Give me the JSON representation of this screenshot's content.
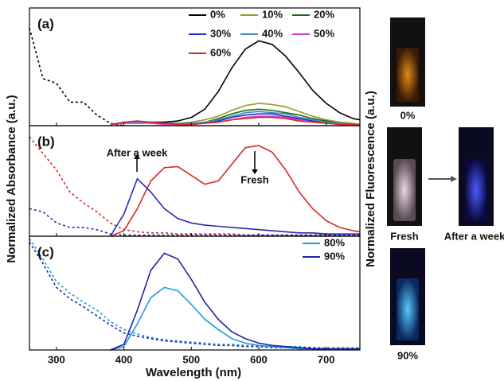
{
  "figure": {
    "xlabel": "Wavelength (nm)",
    "ylabel_left": "Normalized Absorbance (a.u.)",
    "ylabel_right": "Normalized Fluorescence (a.u.)"
  },
  "photos": {
    "labels": [
      "0%",
      "Fresh",
      "After a week",
      "90%"
    ]
  },
  "chart_data": [
    {
      "type": "line",
      "label": "(a)",
      "xlim": [
        260,
        750
      ],
      "ylim": [
        0,
        1
      ],
      "legend": "upper right",
      "x": [
        260,
        280,
        300,
        320,
        340,
        360,
        380,
        400,
        420,
        440,
        460,
        480,
        500,
        520,
        540,
        560,
        580,
        600,
        620,
        640,
        660,
        680,
        700,
        720,
        740,
        750
      ],
      "series": [
        {
          "color": "#000000",
          "dash": true,
          "values": [
            0.83,
            0.4,
            0.36,
            0.2,
            0.2,
            0.09,
            0.02,
            0,
            null,
            null,
            null,
            null,
            null,
            null,
            null,
            null,
            null,
            null,
            null,
            null,
            null,
            null,
            null,
            null,
            null,
            null
          ]
        },
        {
          "name": "0%",
          "color": "#000000",
          "values": [
            null,
            null,
            null,
            null,
            null,
            null,
            0.01,
            0.02,
            0.03,
            0.03,
            0.03,
            0.04,
            0.07,
            0.14,
            0.29,
            0.49,
            0.65,
            0.72,
            0.69,
            0.59,
            0.45,
            0.3,
            0.19,
            0.11,
            0.06,
            0.05
          ]
        },
        {
          "name": "10%",
          "color": "#9a9a2a",
          "values": [
            null,
            null,
            null,
            null,
            null,
            null,
            0.01,
            0.02,
            0.03,
            0.03,
            0.02,
            0.02,
            0.03,
            0.05,
            0.08,
            0.13,
            0.17,
            0.19,
            0.18,
            0.16,
            0.12,
            0.08,
            0.05,
            0.03,
            0.02,
            0.01
          ]
        },
        {
          "name": "20%",
          "color": "#1a6e1a",
          "values": [
            null,
            null,
            null,
            null,
            null,
            null,
            0.01,
            0.02,
            0.03,
            0.03,
            0.02,
            0.02,
            0.02,
            0.03,
            0.06,
            0.1,
            0.13,
            0.14,
            0.13,
            0.11,
            0.09,
            0.06,
            0.04,
            0.02,
            0.01,
            0.01
          ]
        },
        {
          "name": "30%",
          "color": "#2a2acc",
          "values": [
            null,
            null,
            null,
            null,
            null,
            null,
            0.01,
            0.02,
            0.03,
            0.02,
            0.02,
            0.01,
            0.02,
            0.02,
            0.04,
            0.07,
            0.09,
            0.1,
            0.1,
            0.08,
            0.06,
            0.04,
            0.03,
            0.02,
            0.01,
            0.01
          ]
        },
        {
          "name": "40%",
          "color": "#3a8abf",
          "values": [
            null,
            null,
            null,
            null,
            null,
            null,
            0.01,
            0.02,
            0.03,
            0.02,
            0.02,
            0.02,
            0.02,
            0.03,
            0.05,
            0.08,
            0.11,
            0.12,
            0.11,
            0.1,
            0.07,
            0.05,
            0.03,
            0.02,
            0.01,
            0.01
          ]
        },
        {
          "name": "50%",
          "color": "#d43cd4",
          "values": [
            null,
            null,
            null,
            null,
            null,
            null,
            0.01,
            0.02,
            0.02,
            0.02,
            0.01,
            0.01,
            0.01,
            0.02,
            0.03,
            0.05,
            0.07,
            0.08,
            0.08,
            0.07,
            0.05,
            0.03,
            0.02,
            0.01,
            0.01,
            0.01
          ]
        },
        {
          "name": "60%",
          "color": "#d42a2a",
          "values": [
            null,
            null,
            null,
            null,
            null,
            null,
            0.01,
            0.03,
            0.04,
            0.03,
            0.02,
            0.01,
            0.01,
            0.02,
            0.03,
            0.05,
            0.06,
            0.07,
            0.07,
            0.06,
            0.04,
            0.03,
            0.02,
            0.01,
            0.01,
            0.01
          ]
        }
      ]
    },
    {
      "type": "line",
      "label": "(b)",
      "xlim": [
        260,
        750
      ],
      "ylim": [
        0,
        1
      ],
      "annotations": [
        "After a week",
        "Fresh"
      ],
      "x": [
        260,
        280,
        300,
        320,
        340,
        360,
        380,
        400,
        420,
        440,
        460,
        480,
        500,
        520,
        540,
        560,
        580,
        600,
        620,
        640,
        660,
        680,
        700,
        720,
        740,
        750
      ],
      "series": [
        {
          "color": "#d42a2a",
          "dash": true,
          "values": [
            0.9,
            0.75,
            0.6,
            0.4,
            0.3,
            0.22,
            0.12,
            0.06,
            0.04,
            0.03,
            0.03,
            0.02,
            0.02,
            0.02,
            0.02,
            0.02,
            0.01,
            0.01,
            0.01,
            0.01,
            0.01,
            0.01,
            0.01,
            0.01,
            0.01,
            0.01
          ]
        },
        {
          "color": "#2a2ab8",
          "dash": true,
          "values": [
            0.25,
            0.22,
            0.12,
            0.08,
            0.08,
            0.06,
            0.02,
            0.01,
            0.01,
            0.01,
            0.01,
            0.01,
            0.01,
            0.01,
            0.01,
            0.01,
            0.01,
            0.01,
            0.01,
            0.01,
            0.01,
            0.01,
            0.01,
            0.01,
            0.01,
            0.01
          ]
        },
        {
          "color": "#d42a2a",
          "values": [
            null,
            null,
            null,
            null,
            null,
            null,
            0,
            0.05,
            0.25,
            0.5,
            0.62,
            0.63,
            0.55,
            0.47,
            0.5,
            0.65,
            0.8,
            0.82,
            0.76,
            0.6,
            0.4,
            0.25,
            0.14,
            0.08,
            0.05,
            0.04
          ]
        },
        {
          "color": "#2a2ab8",
          "values": [
            null,
            null,
            null,
            null,
            null,
            null,
            0,
            0.2,
            0.52,
            0.4,
            0.25,
            0.16,
            0.12,
            0.1,
            0.09,
            0.08,
            0.07,
            0.06,
            0.05,
            0.04,
            0.03,
            0.03,
            0.02,
            0.02,
            0.02,
            0.02
          ]
        }
      ]
    },
    {
      "type": "line",
      "label": "(c)",
      "xlim": [
        260,
        750
      ],
      "ylim": [
        0,
        1
      ],
      "xticks": [
        300,
        400,
        500,
        600,
        700
      ],
      "legend": "upper right",
      "x": [
        260,
        280,
        300,
        320,
        340,
        360,
        380,
        400,
        420,
        440,
        460,
        480,
        500,
        520,
        540,
        560,
        580,
        600,
        620,
        640,
        660,
        680,
        700,
        720,
        740,
        750
      ],
      "series": [
        {
          "color": "#1e9ae0",
          "dash": true,
          "values": [
            0.98,
            0.8,
            0.6,
            0.5,
            0.42,
            0.35,
            0.25,
            0.18,
            0.14,
            0.11,
            0.09,
            0.08,
            0.07,
            0.06,
            0.05,
            0.05,
            0.04,
            0.04,
            0.03,
            0.03,
            0.03,
            0.02,
            0.02,
            0.02,
            0.02,
            0.02
          ]
        },
        {
          "color": "#2222a8",
          "dash": true,
          "values": [
            0.95,
            0.76,
            0.55,
            0.45,
            0.38,
            0.3,
            0.22,
            0.15,
            0.12,
            0.1,
            0.08,
            0.07,
            0.06,
            0.05,
            0.04,
            0.04,
            0.03,
            0.03,
            0.02,
            0.02,
            0.02,
            0.02,
            0.01,
            0.01,
            0.01,
            0.01
          ]
        },
        {
          "name": "80%",
          "color": "#1e9ae0",
          "values": [
            null,
            null,
            null,
            null,
            null,
            null,
            0,
            0.03,
            0.23,
            0.46,
            0.55,
            0.52,
            0.4,
            0.27,
            0.18,
            0.1,
            0.06,
            0.04,
            0.03,
            0.02,
            0.01,
            0.01,
            0.01,
            0.01,
            0.01,
            0.01
          ]
        },
        {
          "name": "90%",
          "color": "#2222a8",
          "values": [
            null,
            null,
            null,
            null,
            null,
            null,
            0,
            0.05,
            0.35,
            0.7,
            0.85,
            0.8,
            0.62,
            0.42,
            0.27,
            0.16,
            0.1,
            0.06,
            0.04,
            0.03,
            0.02,
            0.01,
            0.01,
            0.01,
            0.01,
            0.01
          ]
        }
      ]
    }
  ]
}
